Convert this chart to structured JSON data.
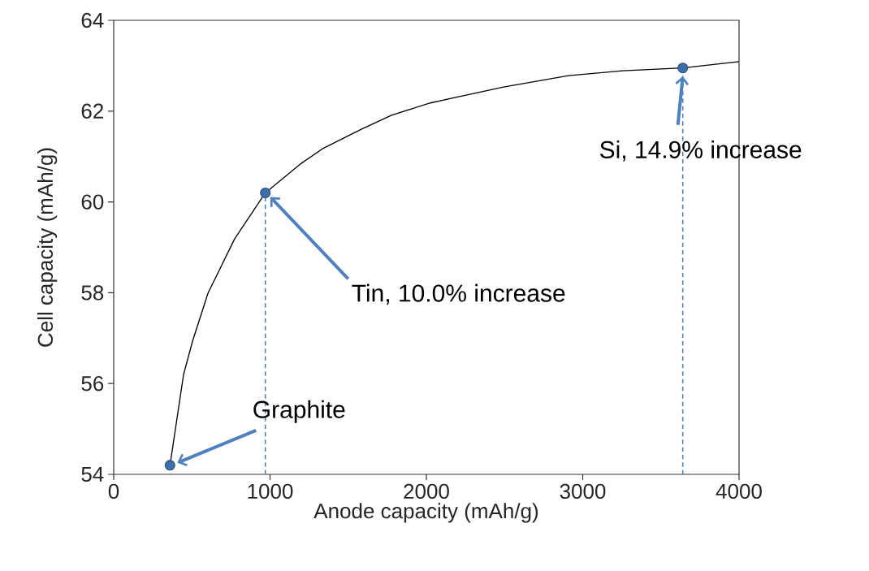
{
  "chart_data": {
    "type": "line",
    "xlabel": "Anode capacity (mAh/g)",
    "ylabel": "Cell capacity (mAh/g)",
    "xlim": [
      0,
      4000
    ],
    "ylim": [
      54,
      64
    ],
    "xticks": [
      0,
      1000,
      2000,
      3000,
      4000
    ],
    "yticks": [
      54,
      56,
      58,
      60,
      62,
      64
    ],
    "grid": false,
    "series": [
      {
        "color": "#000000",
        "marker": "none",
        "line_style": "solid",
        "x": [
          360,
          447,
          504,
          603,
          774,
          970,
          1200,
          1335,
          1584,
          1777,
          2026,
          2182,
          2494,
          2909,
          3257,
          3640,
          4000
        ],
        "values": [
          54.2,
          56.2,
          56.93,
          57.99,
          59.19,
          60.2,
          60.85,
          61.17,
          61.6,
          61.91,
          62.18,
          62.3,
          62.53,
          62.78,
          62.89,
          62.95,
          63.09
        ]
      },
      {
        "color": "#4f81bd",
        "marker": "none",
        "line_style": "dashed",
        "x": [
          970,
          970
        ],
        "values": [
          54,
          60.2
        ]
      },
      {
        "color": "#4f81bd",
        "marker": "none",
        "line_style": "dashed",
        "x": [
          3640,
          3640
        ],
        "values": [
          54,
          62.95
        ]
      },
      {
        "type": "scatter",
        "color": "#3d6ea8",
        "marker": "circle",
        "x": [
          360,
          970,
          3640
        ],
        "values": [
          54.2,
          60.2,
          62.95
        ]
      }
    ],
    "annotations": [
      "Graphite",
      "Tin, 10.0% increase",
      {
        "text": "Si, 14.9% increase",
        "x": 3640,
        "y": 62.95
      }
    ]
  }
}
